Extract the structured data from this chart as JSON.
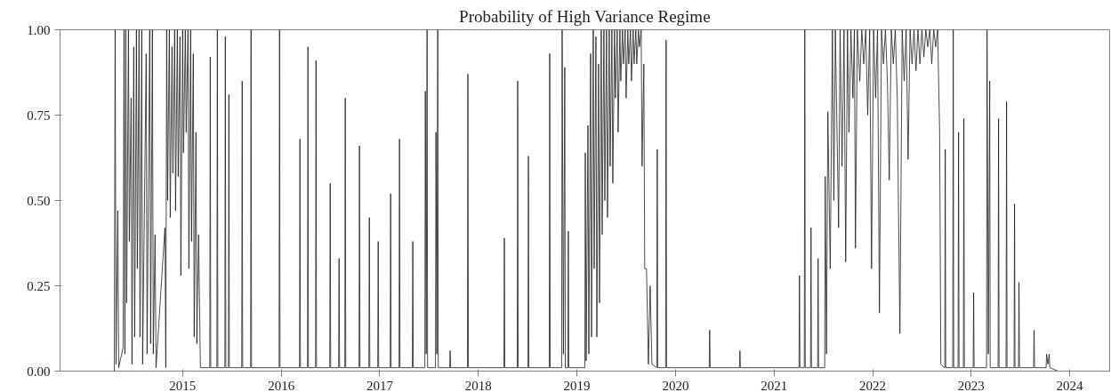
{
  "chart_data": {
    "type": "line",
    "title": "Probability of High Variance Regime",
    "xlim": [
      2014.256,
      2024.905
    ],
    "ylim": [
      0,
      1
    ],
    "xticks": [
      {
        "value": 2015.5,
        "label": "2015"
      },
      {
        "value": 2016.5,
        "label": "2016"
      },
      {
        "value": 2017.5,
        "label": "2017"
      },
      {
        "value": 2018.5,
        "label": "2018"
      },
      {
        "value": 2019.5,
        "label": "2019"
      },
      {
        "value": 2020.5,
        "label": "2020"
      },
      {
        "value": 2021.5,
        "label": "2021"
      },
      {
        "value": 2022.5,
        "label": "2022"
      },
      {
        "value": 2023.5,
        "label": "2023"
      },
      {
        "value": 2024.5,
        "label": "2024"
      }
    ],
    "yticks": [
      {
        "value": 0,
        "label": "0.00"
      },
      {
        "value": 0.25,
        "label": "0.25"
      },
      {
        "value": 0.5,
        "label": "0.50"
      },
      {
        "value": 0.75,
        "label": "0.75"
      },
      {
        "value": 1,
        "label": "1.00"
      }
    ],
    "grid": false,
    "x": [
      2014.806,
      2014.815,
      2014.824,
      2014.842,
      2014.851,
      2014.896,
      2014.905,
      2014.914,
      2014.923,
      2014.932,
      2014.95,
      2014.959,
      2014.977,
      2014.986,
      2015.004,
      2015.013,
      2015.031,
      2015.04,
      2015.058,
      2015.067,
      2015.085,
      2015.094,
      2015.13,
      2015.139,
      2015.166,
      2015.175,
      2015.193,
      2015.202,
      2015.22,
      2015.23,
      2015.32,
      2015.329,
      2015.338,
      2015.347,
      2015.365,
      2015.374,
      2015.392,
      2015.401,
      2015.419,
      2015.428,
      2015.446,
      2015.455,
      2015.473,
      2015.482,
      2015.5,
      2015.509,
      2015.527,
      2015.536,
      2015.554,
      2015.563,
      2015.581,
      2015.59,
      2015.608,
      2015.617,
      2015.635,
      2015.644,
      2015.662,
      2015.68,
      2015.775,
      2015.78,
      2015.785,
      2015.847,
      2015.852,
      2015.857,
      2015.928,
      2015.933,
      2015.938,
      2015.964,
      2015.969,
      2015.974,
      2016.099,
      2016.104,
      2016.109,
      2016.189,
      2016.194,
      2016.199,
      2016.478,
      2016.483,
      2016.488,
      2016.685,
      2016.69,
      2016.695,
      2016.766,
      2016.771,
      2016.776,
      2016.848,
      2016.853,
      2016.858,
      2016.992,
      2016.997,
      2017.002,
      2017.082,
      2017.087,
      2017.092,
      2017.145,
      2017.15,
      2017.155,
      2017.289,
      2017.294,
      2017.299,
      2017.389,
      2017.394,
      2017.399,
      2017.479,
      2017.484,
      2017.489,
      2017.605,
      2017.61,
      2017.615,
      2017.695,
      2017.7,
      2017.705,
      2017.83,
      2017.835,
      2017.84,
      2017.957,
      2017.962,
      2017.971,
      2017.98,
      2017.985,
      2018.065,
      2018.07,
      2018.079,
      2018.088,
      2018.093,
      2018.209,
      2018.214,
      2018.219,
      2018.389,
      2018.394,
      2018.399,
      2018.759,
      2018.764,
      2018.769,
      2018.894,
      2018.899,
      2018.904,
      2019.003,
      2019.008,
      2019.013,
      2019.219,
      2019.224,
      2019.229,
      2019.345,
      2019.35,
      2019.363,
      2019.377,
      2019.382,
      2019.408,
      2019.413,
      2019.418,
      2019.58,
      2019.585,
      2019.594,
      2019.612,
      2019.621,
      2019.639,
      2019.648,
      2019.666,
      2019.675,
      2019.693,
      2019.702,
      2019.72,
      2019.729,
      2019.747,
      2019.756,
      2019.774,
      2019.783,
      2019.801,
      2019.81,
      2019.828,
      2019.837,
      2019.855,
      2019.864,
      2019.882,
      2019.891,
      2019.909,
      2019.918,
      2019.936,
      2019.945,
      2019.963,
      2019.972,
      2019.99,
      2019.999,
      2020.017,
      2020.026,
      2020.044,
      2020.053,
      2020.071,
      2020.08,
      2020.098,
      2020.107,
      2020.125,
      2020.134,
      2020.152,
      2020.161,
      2020.179,
      2020.188,
      2020.206,
      2020.225,
      2020.243,
      2020.261,
      2020.31,
      2020.315,
      2020.32,
      2020.4,
      2020.405,
      2020.41,
      2020.842,
      2020.847,
      2020.852,
      2021.149,
      2021.154,
      2021.159,
      2021.753,
      2021.758,
      2021.763,
      2021.807,
      2021.812,
      2021.817,
      2021.87,
      2021.875,
      2021.88,
      2021.942,
      2021.947,
      2021.952,
      2022.014,
      2022.019,
      2022.032,
      2022.046,
      2022.07,
      2022.092,
      2022.107,
      2022.122,
      2022.155,
      2022.17,
      2022.19,
      2022.21,
      2022.227,
      2022.245,
      2022.26,
      2022.28,
      2022.3,
      2022.315,
      2022.326,
      2022.345,
      2022.37,
      2022.39,
      2022.41,
      2022.43,
      2022.45,
      2022.47,
      2022.489,
      2022.51,
      2022.53,
      2022.55,
      2022.569,
      2022.59,
      2022.61,
      2022.63,
      2022.65,
      2022.669,
      2022.69,
      2022.71,
      2022.73,
      2022.75,
      2022.777,
      2022.8,
      2022.82,
      2022.84,
      2022.86,
      2022.88,
      2022.9,
      2022.92,
      2022.94,
      2022.96,
      2022.98,
      2023.0,
      2023.02,
      2023.04,
      2023.06,
      2023.08,
      2023.1,
      2023.12,
      2023.14,
      2023.16,
      2023.18,
      2023.192,
      2023.232,
      2023.237,
      2023.242,
      2023.313,
      2023.318,
      2023.323,
      2023.367,
      2023.372,
      2023.377,
      2023.421,
      2023.426,
      2023.431,
      2023.52,
      2023.525,
      2023.53,
      2023.656,
      2023.661,
      2023.674,
      2023.688,
      2023.693,
      2023.773,
      2023.778,
      2023.783,
      2023.854,
      2023.859,
      2023.864,
      2023.935,
      2023.94,
      2023.945,
      2023.98,
      2023.985,
      2023.99,
      2024.133,
      2024.138,
      2024.143,
      2024.26,
      2024.265,
      2024.278,
      2024.292,
      2024.297,
      2024.382
    ],
    "series": [
      {
        "color": "#1e1e1e",
        "values": [
          0,
          1.0,
          0.02,
          0.47,
          0.01,
          0.07,
          1.0,
          0.05,
          1.0,
          0.2,
          1.0,
          0.38,
          0.8,
          0.02,
          0.95,
          0.1,
          1.0,
          0.3,
          1.0,
          0.1,
          1.0,
          0.02,
          0.93,
          0.05,
          1.0,
          0.08,
          1.0,
          0.05,
          0.4,
          0.01,
          0.42,
          0.01,
          1.0,
          0.5,
          1.0,
          0.45,
          0.95,
          0.58,
          1.0,
          0.47,
          1.0,
          0.57,
          0.98,
          0.28,
          1.0,
          0.64,
          1.0,
          0.7,
          1.0,
          0.3,
          1.0,
          0.38,
          0.93,
          0.1,
          0.7,
          0.08,
          0.4,
          0.01,
          0.01,
          0.92,
          0.01,
          0.01,
          1.0,
          0.01,
          0.01,
          0.98,
          0.01,
          0.01,
          0.81,
          0.01,
          0.01,
          0.85,
          0.01,
          0.01,
          1.0,
          0.01,
          0.01,
          1.0,
          0.01,
          0.01,
          0.68,
          0.01,
          0.01,
          0.95,
          0.01,
          0.01,
          0.91,
          0.01,
          0.01,
          0.55,
          0.01,
          0.01,
          0.33,
          0.01,
          0.01,
          0.8,
          0.01,
          0.01,
          0.66,
          0.01,
          0.01,
          0.45,
          0.01,
          0.01,
          0.38,
          0.01,
          0.01,
          0.52,
          0.01,
          0.01,
          0.68,
          0.01,
          0.01,
          0.38,
          0.01,
          0.01,
          0.82,
          0.05,
          1.0,
          0.01,
          0.01,
          0.7,
          0.05,
          1.0,
          0.01,
          0.01,
          0.06,
          0.01,
          0.01,
          0.87,
          0.01,
          0.01,
          0.39,
          0.01,
          0.01,
          0.85,
          0.01,
          0.01,
          0.63,
          0.01,
          0.01,
          0.93,
          0.01,
          0.01,
          1.0,
          0.05,
          0.89,
          0.01,
          0.01,
          0.41,
          0.01,
          0.01,
          0.64,
          0.03,
          0.72,
          0.05,
          0.93,
          0.1,
          1.0,
          0.3,
          0.98,
          0.1,
          0.9,
          0.2,
          1.0,
          0.4,
          1.0,
          0.5,
          1.0,
          0.45,
          1.0,
          0.6,
          1.0,
          0.55,
          1.0,
          0.8,
          1.0,
          0.7,
          1.0,
          0.85,
          1.0,
          0.9,
          1.0,
          0.8,
          1.0,
          0.9,
          1.0,
          0.85,
          1.0,
          0.9,
          1.0,
          0.9,
          1.0,
          0.95,
          1.0,
          0.6,
          0.9,
          0.3,
          0.3,
          0.02,
          0.25,
          0.02,
          0.01,
          0.65,
          0.01,
          0.01,
          0.97,
          0.01,
          0.01,
          0.12,
          0.01,
          0.01,
          0.06,
          0.01,
          0.01,
          0.28,
          0.01,
          0.01,
          1.0,
          0.01,
          0.01,
          0.42,
          0.01,
          0.01,
          0.33,
          0.01,
          0.01,
          0.57,
          0.05,
          0.76,
          0.3,
          1.0,
          0.5,
          1.0,
          0.42,
          1.0,
          0.6,
          1.0,
          0.32,
          1.0,
          0.7,
          1.0,
          0.8,
          1.0,
          0.36,
          1.0,
          0.85,
          1.0,
          0.9,
          1.0,
          0.75,
          1.0,
          0.3,
          1.0,
          0.8,
          1.0,
          0.17,
          1.0,
          0.9,
          1.0,
          0.85,
          0.56,
          1.0,
          0.9,
          1.0,
          0.8,
          0.11,
          1.0,
          0.85,
          1.0,
          0.62,
          1.0,
          0.9,
          1.0,
          0.88,
          1.0,
          0.9,
          1.0,
          0.92,
          1.0,
          0.95,
          1.0,
          0.9,
          1.0,
          0.95,
          1.0,
          0.7,
          0.02,
          0.01,
          0.65,
          0.01,
          0.01,
          1.0,
          0.01,
          0.01,
          0.7,
          0.01,
          0.01,
          0.74,
          0.01,
          0.01,
          0.23,
          0.01,
          0.01,
          1.0,
          0.05,
          0.85,
          0.01,
          0.01,
          0.74,
          0.01,
          0.01,
          0.79,
          0.01,
          0.01,
          0.49,
          0.01,
          0.01,
          0.26,
          0.01,
          0.01,
          0.12,
          0.01,
          0.01,
          0.05,
          0.02,
          0.05,
          0.01,
          0
        ]
      }
    ]
  }
}
